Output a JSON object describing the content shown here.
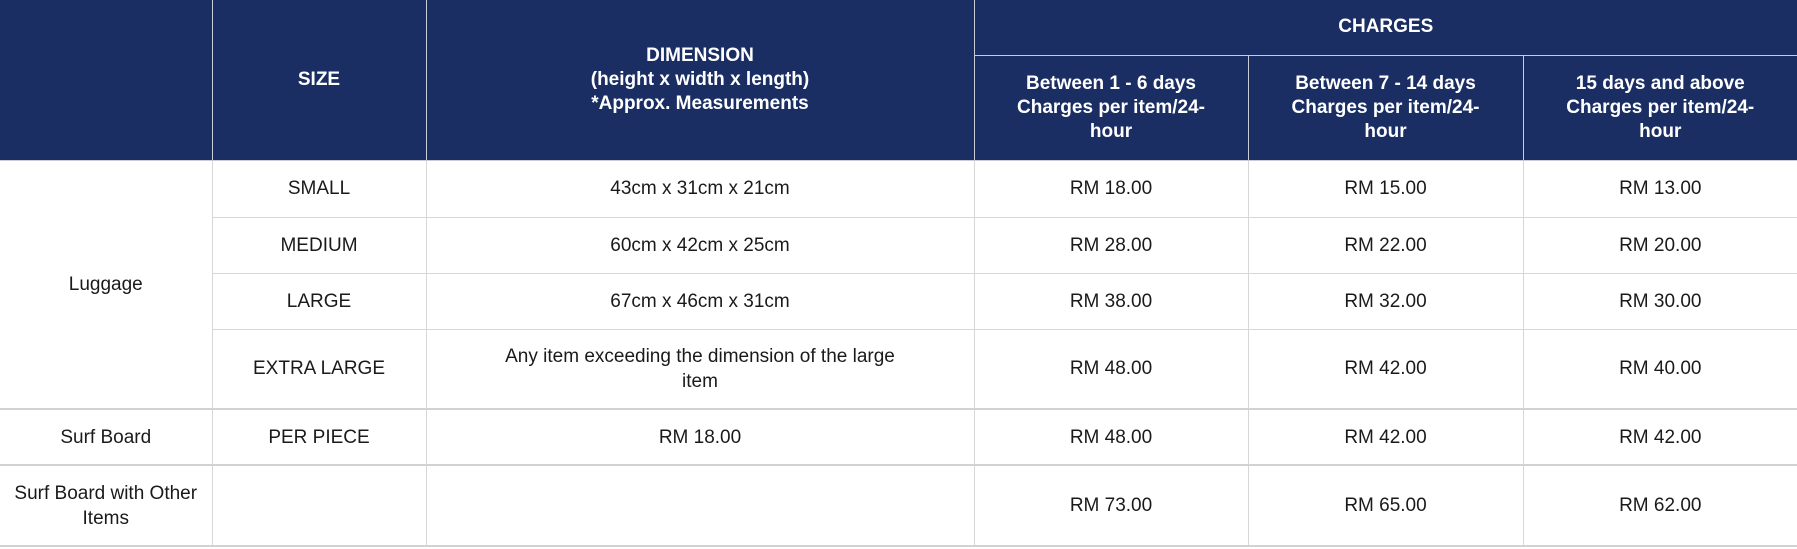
{
  "header": {
    "size": "SIZE",
    "dimension": [
      "DIMENSION",
      "(height x width x length)",
      "*Approx. Measurements"
    ],
    "charges": "CHARGES",
    "charge_columns": [
      [
        "Between 1 - 6 days",
        "Charges per item/24-",
        "hour"
      ],
      [
        "Between 7 - 14 days",
        "Charges per item/24-",
        "hour"
      ],
      [
        "15 days and above",
        "Charges per item/24-",
        "hour"
      ]
    ]
  },
  "colors": {
    "header_bg": "#1a2e63",
    "header_text": "#ffffff"
  },
  "rows": [
    {
      "category": "Luggage",
      "size": "SMALL",
      "dimension": "43cm x 31cm x 21cm",
      "charges": [
        "RM 18.00",
        "RM 15.00",
        "RM 13.00"
      ]
    },
    {
      "category": "",
      "size": "MEDIUM",
      "dimension": "60cm x 42cm x 25cm",
      "charges": [
        "RM 28.00",
        "RM 22.00",
        "RM 20.00"
      ]
    },
    {
      "category": "",
      "size": "LARGE",
      "dimension": "67cm x 46cm x 31cm",
      "charges": [
        "RM 38.00",
        "RM 32.00",
        "RM 30.00"
      ]
    },
    {
      "category": "",
      "size": "EXTRA LARGE",
      "dimension": "Any item exceeding the dimension of the large item",
      "charges": [
        "RM 48.00",
        "RM 42.00",
        "RM 40.00"
      ]
    },
    {
      "category": "Surf Board",
      "size": "PER PIECE",
      "dimension": "RM 18.00",
      "charges": [
        "RM 48.00",
        "RM 42.00",
        "RM 42.00"
      ]
    },
    {
      "category": "Surf Board with Other Items",
      "size": "",
      "dimension": "",
      "charges": [
        "RM 73.00",
        "RM 65.00",
        "RM 62.00"
      ]
    }
  ]
}
